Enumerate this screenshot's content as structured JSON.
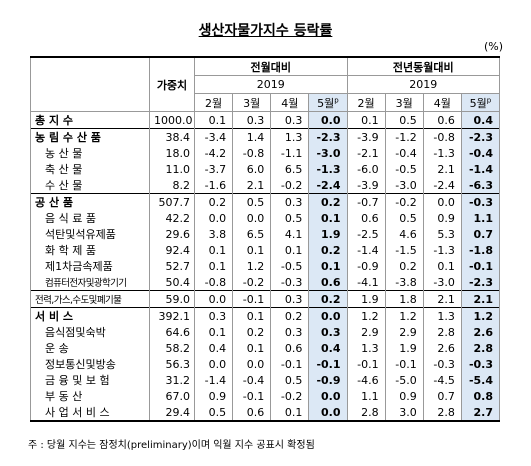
{
  "title": "생산자물가지수 등락률",
  "unit": "(%)",
  "header": {
    "weight": "가중치",
    "groups": [
      {
        "label": "전월대비",
        "year": "2019",
        "months": [
          "2월",
          "3월",
          "4월",
          "5월"
        ],
        "prelim": "p"
      },
      {
        "label": "전년동월대비",
        "year": "2019",
        "months": [
          "2월",
          "3월",
          "4월",
          "5월"
        ],
        "prelim": "p"
      }
    ]
  },
  "rows": [
    {
      "label": "총 지 수",
      "weight": "1000.0",
      "values": [
        "0.1",
        "0.3",
        "0.3",
        "0.0",
        "0.1",
        "0.5",
        "0.6",
        "0.4"
      ]
    },
    {
      "label": "농 림 수 산 품",
      "weight": "38.4",
      "values": [
        "-3.4",
        "1.4",
        "1.3",
        "-2.3",
        "-3.9",
        "-1.2",
        "-0.8",
        "-2.3"
      ]
    },
    {
      "label": "농 산 물",
      "weight": "18.0",
      "values": [
        "-4.2",
        "-0.8",
        "-1.1",
        "-3.0",
        "-2.1",
        "-0.4",
        "-1.3",
        "-0.4"
      ]
    },
    {
      "label": "축 산 물",
      "weight": "11.0",
      "values": [
        "-3.7",
        "6.0",
        "6.5",
        "-1.3",
        "-6.0",
        "-0.5",
        "2.1",
        "-1.4"
      ]
    },
    {
      "label": "수 산 물",
      "weight": "8.2",
      "values": [
        "-1.6",
        "2.1",
        "-0.2",
        "-2.4",
        "-3.9",
        "-3.0",
        "-2.4",
        "-6.3"
      ]
    },
    {
      "label": "공 산 품",
      "weight": "507.7",
      "values": [
        "0.2",
        "0.5",
        "0.3",
        "0.2",
        "-0.7",
        "-0.2",
        "0.0",
        "-0.3"
      ]
    },
    {
      "label": "음 식 료 품",
      "weight": "42.2",
      "values": [
        "0.0",
        "0.0",
        "0.5",
        "0.1",
        "0.6",
        "0.5",
        "0.9",
        "1.1"
      ]
    },
    {
      "label": "석탄및석유제품",
      "weight": "29.6",
      "values": [
        "3.8",
        "6.5",
        "4.1",
        "1.9",
        "-2.5",
        "4.6",
        "5.3",
        "0.7"
      ]
    },
    {
      "label": "화 학 제 품",
      "weight": "92.4",
      "values": [
        "0.1",
        "0.1",
        "0.1",
        "0.2",
        "-1.4",
        "-1.5",
        "-1.3",
        "-1.8"
      ]
    },
    {
      "label": "제1차금속제품",
      "weight": "52.7",
      "values": [
        "0.1",
        "1.2",
        "-0.5",
        "0.1",
        "-0.9",
        "0.2",
        "0.1",
        "-0.1"
      ]
    },
    {
      "label": "컴퓨터전자및광학기기",
      "weight": "50.4",
      "values": [
        "-0.8",
        "-0.2",
        "-0.3",
        "0.6",
        "-4.1",
        "-3.8",
        "-3.0",
        "-2.3"
      ]
    },
    {
      "label": "전력,가스,수도및폐기물",
      "weight": "59.0",
      "values": [
        "0.0",
        "-0.1",
        "0.3",
        "0.2",
        "1.9",
        "1.8",
        "2.1",
        "2.1"
      ]
    },
    {
      "label": "서 비 스",
      "weight": "392.1",
      "values": [
        "0.3",
        "0.1",
        "0.2",
        "0.0",
        "1.2",
        "1.2",
        "1.3",
        "1.2"
      ]
    },
    {
      "label": "음식점및숙박",
      "weight": "64.6",
      "values": [
        "0.1",
        "0.2",
        "0.3",
        "0.3",
        "2.9",
        "2.9",
        "2.8",
        "2.6"
      ]
    },
    {
      "label": "운 송",
      "weight": "58.2",
      "values": [
        "0.4",
        "0.1",
        "0.6",
        "0.4",
        "1.3",
        "1.9",
        "2.6",
        "2.8"
      ]
    },
    {
      "label": "정보통신및방송",
      "weight": "56.3",
      "values": [
        "0.0",
        "0.0",
        "-0.1",
        "-0.1",
        "-0.1",
        "-0.1",
        "-0.3",
        "-0.3"
      ]
    },
    {
      "label": "금 융 및 보 험",
      "weight": "31.2",
      "values": [
        "-1.4",
        "-0.4",
        "0.5",
        "-0.9",
        "-4.6",
        "-5.0",
        "-4.5",
        "-5.4"
      ]
    },
    {
      "label": "부 동 산",
      "weight": "67.0",
      "values": [
        "0.9",
        "-0.1",
        "-0.2",
        "0.0",
        "1.1",
        "0.9",
        "0.7",
        "0.8"
      ]
    },
    {
      "label": "사 업 서 비 스",
      "weight": "29.4",
      "values": [
        "0.5",
        "0.6",
        "0.1",
        "0.0",
        "2.8",
        "3.0",
        "2.8",
        "2.7"
      ]
    }
  ],
  "footnote": "주 : 당월 지수는 잠정치(preliminary)이며 익월 지수 공표시 확정됨"
}
